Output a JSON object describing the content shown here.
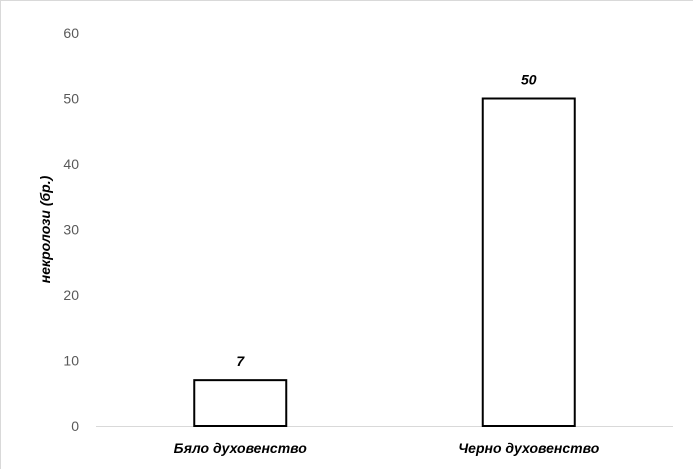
{
  "chart_data": {
    "type": "bar",
    "title": "",
    "xlabel": "",
    "ylabel": "некролози (бр.)",
    "ylim": [
      0,
      60
    ],
    "yticks": [
      0,
      10,
      20,
      30,
      40,
      50,
      60
    ],
    "grid": false,
    "categories": [
      "Бяло духовенство",
      "Черно духовенство"
    ],
    "values": [
      7,
      50
    ],
    "data_labels": [
      "7",
      "50"
    ],
    "colors": {
      "bar_fill": "#ffffff",
      "bar_stroke": "#000000",
      "axis_line": "#d9d9d9",
      "tick_text": "#595959"
    }
  }
}
